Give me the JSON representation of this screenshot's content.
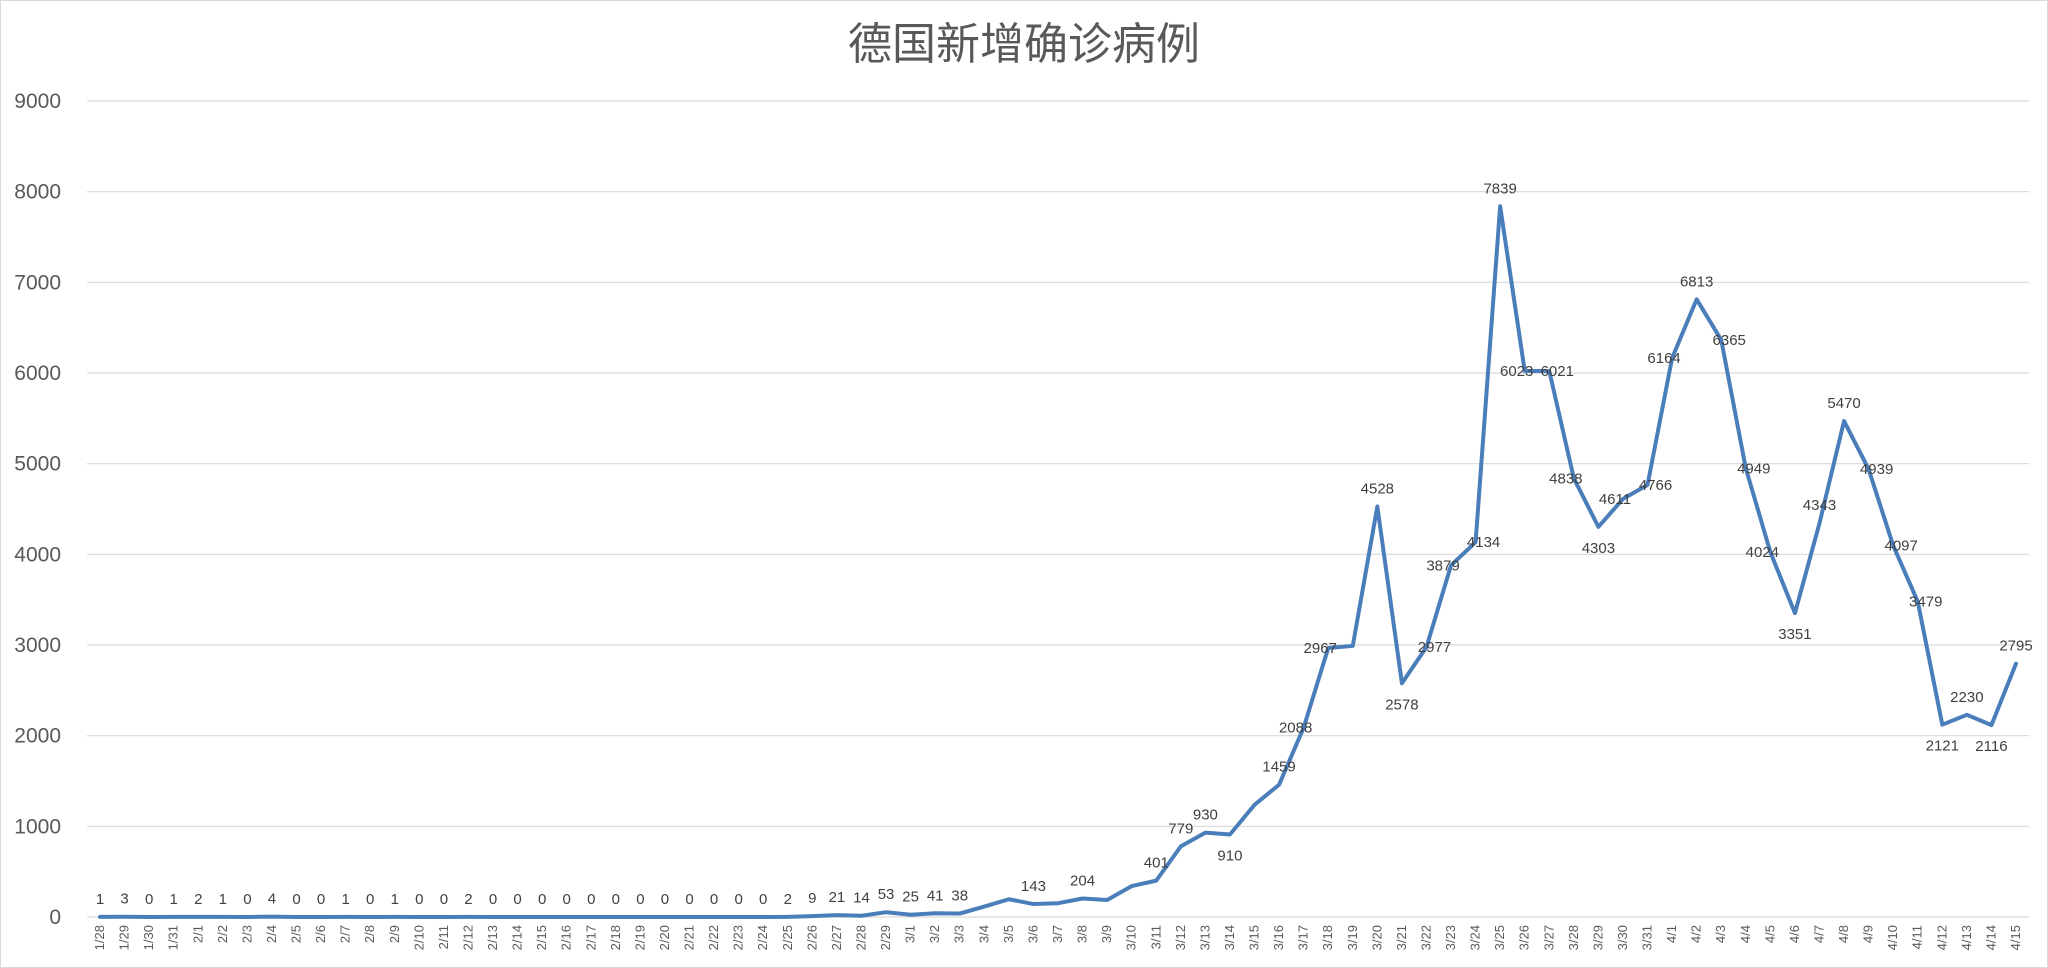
{
  "chart_data": {
    "type": "line",
    "title": "德国新增确诊病例",
    "xlabel": "",
    "ylabel": "",
    "ylim": [
      0,
      9000
    ],
    "yticks": [
      0,
      1000,
      2000,
      3000,
      4000,
      5000,
      6000,
      7000,
      8000,
      9000
    ],
    "grid": true,
    "legend": "none",
    "color": "#4a7ebb",
    "categories": [
      "1/28",
      "1/29",
      "1/30",
      "1/31",
      "2/1",
      "2/2",
      "2/3",
      "2/4",
      "2/5",
      "2/6",
      "2/7",
      "2/8",
      "2/9",
      "2/10",
      "2/11",
      "2/12",
      "2/13",
      "2/14",
      "2/15",
      "2/16",
      "2/17",
      "2/18",
      "2/19",
      "2/20",
      "2/21",
      "2/22",
      "2/23",
      "2/24",
      "2/25",
      "2/26",
      "2/27",
      "2/28",
      "2/29",
      "3/1",
      "3/2",
      "3/3",
      "3/4",
      "3/5",
      "3/6",
      "3/7",
      "3/8",
      "3/9",
      "3/10",
      "3/11",
      "3/12",
      "3/13",
      "3/14",
      "3/15",
      "3/16",
      "3/17",
      "3/18",
      "3/19",
      "3/20",
      "3/21",
      "3/22",
      "3/23",
      "3/24",
      "3/25",
      "3/26",
      "3/27",
      "3/28",
      "3/29",
      "3/30",
      "3/31",
      "4/1",
      "4/2",
      "4/3",
      "4/4",
      "4/5",
      "4/6",
      "4/7",
      "4/8",
      "4/9",
      "4/10",
      "4/11",
      "4/12",
      "4/13",
      "4/14",
      "4/15"
    ],
    "values": [
      1,
      3,
      0,
      1,
      2,
      1,
      0,
      4,
      0,
      0,
      1,
      0,
      1,
      0,
      0,
      2,
      0,
      0,
      0,
      0,
      0,
      0,
      0,
      0,
      0,
      0,
      0,
      0,
      2,
      9,
      21,
      14,
      53,
      25,
      41,
      38,
      115,
      196,
      143,
      152,
      204,
      187,
      341,
      401,
      779,
      930,
      910,
      1237,
      1459,
      2088,
      2967,
      2990,
      4528,
      2578,
      2977,
      3879,
      4134,
      7839,
      6023,
      6021,
      4838,
      4303,
      4611,
      4766,
      6164,
      6813,
      6365,
      4949,
      4024,
      3351,
      4343,
      5470,
      4939,
      4097,
      3479,
      2121,
      2230,
      2116,
      2795
    ],
    "data_labels": [
      {
        "index": 0,
        "text": "1"
      },
      {
        "index": 1,
        "text": "3"
      },
      {
        "index": 2,
        "text": "0"
      },
      {
        "index": 3,
        "text": "1"
      },
      {
        "index": 4,
        "text": "2"
      },
      {
        "index": 5,
        "text": "1"
      },
      {
        "index": 6,
        "text": "0"
      },
      {
        "index": 7,
        "text": "4"
      },
      {
        "index": 8,
        "text": "0"
      },
      {
        "index": 9,
        "text": "0"
      },
      {
        "index": 10,
        "text": "1"
      },
      {
        "index": 11,
        "text": "0"
      },
      {
        "index": 12,
        "text": "1"
      },
      {
        "index": 13,
        "text": "0"
      },
      {
        "index": 14,
        "text": "0"
      },
      {
        "index": 15,
        "text": "2"
      },
      {
        "index": 16,
        "text": "0"
      },
      {
        "index": 17,
        "text": "0"
      },
      {
        "index": 18,
        "text": "0"
      },
      {
        "index": 19,
        "text": "0"
      },
      {
        "index": 20,
        "text": "0"
      },
      {
        "index": 21,
        "text": "0"
      },
      {
        "index": 22,
        "text": "0"
      },
      {
        "index": 23,
        "text": "0"
      },
      {
        "index": 24,
        "text": "0"
      },
      {
        "index": 25,
        "text": "0"
      },
      {
        "index": 26,
        "text": "0"
      },
      {
        "index": 27,
        "text": "0"
      },
      {
        "index": 28,
        "text": "2"
      },
      {
        "index": 29,
        "text": "9"
      },
      {
        "index": 30,
        "text": "21"
      },
      {
        "index": 31,
        "text": "14"
      },
      {
        "index": 32,
        "text": "53"
      },
      {
        "index": 33,
        "text": "25"
      },
      {
        "index": 34,
        "text": "41"
      },
      {
        "index": 35,
        "text": "38"
      },
      {
        "index": 38,
        "text": "143"
      },
      {
        "index": 40,
        "text": "204"
      },
      {
        "index": 43,
        "text": "401"
      },
      {
        "index": 44,
        "text": "779"
      },
      {
        "index": 45,
        "text": "930"
      },
      {
        "index": 46,
        "text": "910",
        "pos": "below"
      },
      {
        "index": 48,
        "text": "1459"
      },
      {
        "index": 49,
        "text": "2088",
        "pos": "left"
      },
      {
        "index": 50,
        "text": "2967",
        "pos": "left"
      },
      {
        "index": 52,
        "text": "4528"
      },
      {
        "index": 53,
        "text": "2578",
        "pos": "below"
      },
      {
        "index": 54,
        "text": "2977",
        "pos": "right"
      },
      {
        "index": 55,
        "text": "3879",
        "pos": "left"
      },
      {
        "index": 56,
        "text": "4134",
        "pos": "right"
      },
      {
        "index": 57,
        "text": "7839"
      },
      {
        "index": 58,
        "text": "6023",
        "pos": "left"
      },
      {
        "index": 59,
        "text": "6021",
        "pos": "right"
      },
      {
        "index": 60,
        "text": "4838",
        "pos": "left"
      },
      {
        "index": 61,
        "text": "4303",
        "pos": "below"
      },
      {
        "index": 62,
        "text": "4611",
        "pos": "left"
      },
      {
        "index": 63,
        "text": "4766",
        "pos": "right"
      },
      {
        "index": 64,
        "text": "6164",
        "pos": "left"
      },
      {
        "index": 65,
        "text": "6813"
      },
      {
        "index": 66,
        "text": "6365",
        "pos": "right"
      },
      {
        "index": 67,
        "text": "4949",
        "pos": "right"
      },
      {
        "index": 68,
        "text": "4024",
        "pos": "left"
      },
      {
        "index": 69,
        "text": "3351",
        "pos": "below"
      },
      {
        "index": 70,
        "text": "4343"
      },
      {
        "index": 71,
        "text": "5470"
      },
      {
        "index": 72,
        "text": "4939",
        "pos": "right"
      },
      {
        "index": 73,
        "text": "4097",
        "pos": "right"
      },
      {
        "index": 74,
        "text": "3479",
        "pos": "right"
      },
      {
        "index": 75,
        "text": "2121",
        "pos": "below"
      },
      {
        "index": 76,
        "text": "2230"
      },
      {
        "index": 77,
        "text": "2116",
        "pos": "below"
      },
      {
        "index": 78,
        "text": "2795"
      }
    ]
  }
}
